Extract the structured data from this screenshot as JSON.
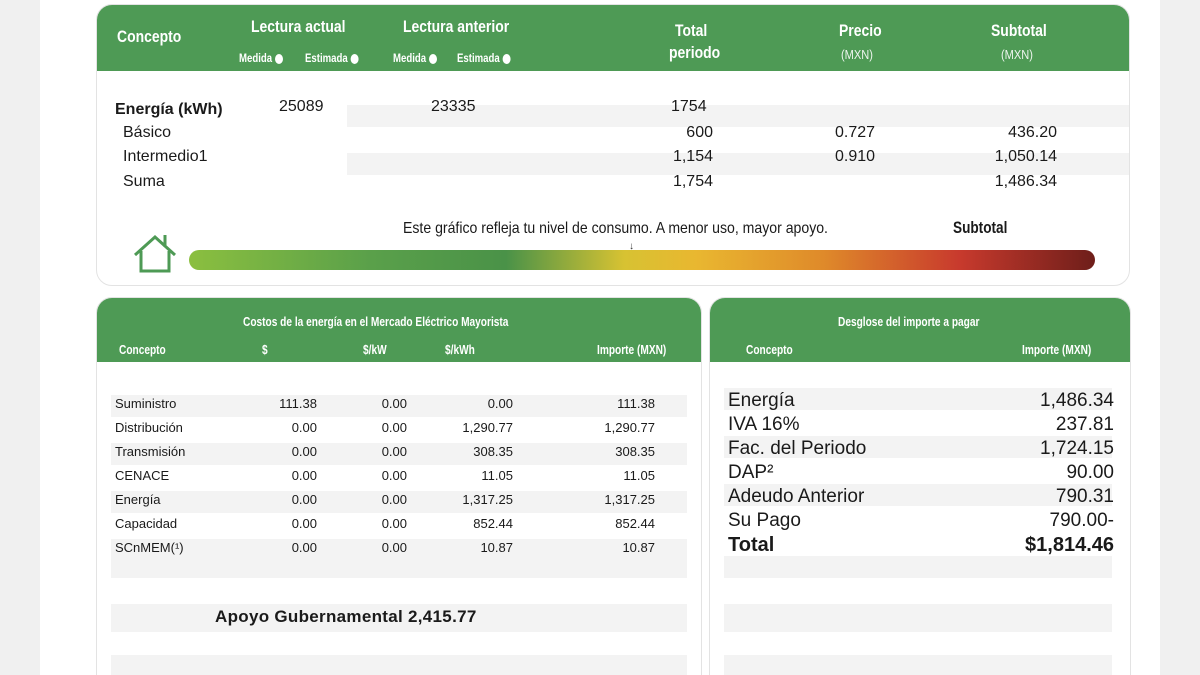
{
  "top": {
    "headers": {
      "concepto": "Concepto",
      "lectura_actual": "Lectura actual",
      "lectura_anterior": "Lectura anterior",
      "medida": "Medida",
      "estimada": "Estimada",
      "total_line1": "Total",
      "total_line2": "periodo",
      "precio": "Precio",
      "precio_unit": "(MXN)",
      "subtotal": "Subtotal",
      "subtotal_unit": "(MXN)"
    },
    "energia": {
      "label": "Energía (kWh)",
      "actual": "25089",
      "anterior": "23335",
      "total": "1754"
    },
    "rows": [
      {
        "concepto": "Básico",
        "total": "600",
        "precio": "0.727",
        "subtotal": "436.20"
      },
      {
        "concepto": "Intermedio1",
        "total": "1,154",
        "precio": "0.910",
        "subtotal": "1,050.14"
      },
      {
        "concepto": "Suma",
        "total": "1,754",
        "precio": "",
        "subtotal": "1,486.34"
      }
    ],
    "consumo_text": "Este gráfico refleja tu nivel de consumo. A menor uso, mayor apoyo.",
    "subtotal_label": "Subtotal",
    "gauge_icon": "house-icon",
    "gauge_level": 0.49
  },
  "costos": {
    "title": "Costos de la energía en el Mercado Eléctrico Mayorista",
    "headers": [
      "Concepto",
      "$",
      "$/kW",
      "$/kWh",
      "Importe (MXN)"
    ],
    "rows": [
      [
        "Suministro",
        "111.38",
        "0.00",
        "0.00",
        "111.38"
      ],
      [
        "Distribución",
        "0.00",
        "0.00",
        "1,290.77",
        "1,290.77"
      ],
      [
        "Transmisión",
        "0.00",
        "0.00",
        "308.35",
        "308.35"
      ],
      [
        "CENACE",
        "0.00",
        "0.00",
        "11.05",
        "11.05"
      ],
      [
        "Energía",
        "0.00",
        "0.00",
        "1,317.25",
        "1,317.25"
      ],
      [
        "Capacidad",
        "0.00",
        "0.00",
        "852.44",
        "852.44"
      ],
      [
        "SCnMEM(¹)",
        "0.00",
        "0.00",
        "10.87",
        "10.87"
      ]
    ],
    "apoyo": "Apoyo Gubernamental 2,415.77"
  },
  "desglose": {
    "title": "Desglose del importe a pagar",
    "headers": [
      "Concepto",
      "Importe (MXN)"
    ],
    "rows": [
      [
        "Energía",
        "1,486.34"
      ],
      [
        "IVA 16%",
        "237.81"
      ],
      [
        "Fac. del Periodo",
        "1,724.15"
      ],
      [
        "DAP²",
        "90.00"
      ],
      [
        "Adeudo Anterior",
        "790.31"
      ],
      [
        "Su Pago",
        "790.00-"
      ]
    ],
    "total_label": "Total",
    "total_value": "$1,814.46"
  },
  "colors": {
    "green": "#4e9a55",
    "stripe": "#f3f3f3"
  }
}
